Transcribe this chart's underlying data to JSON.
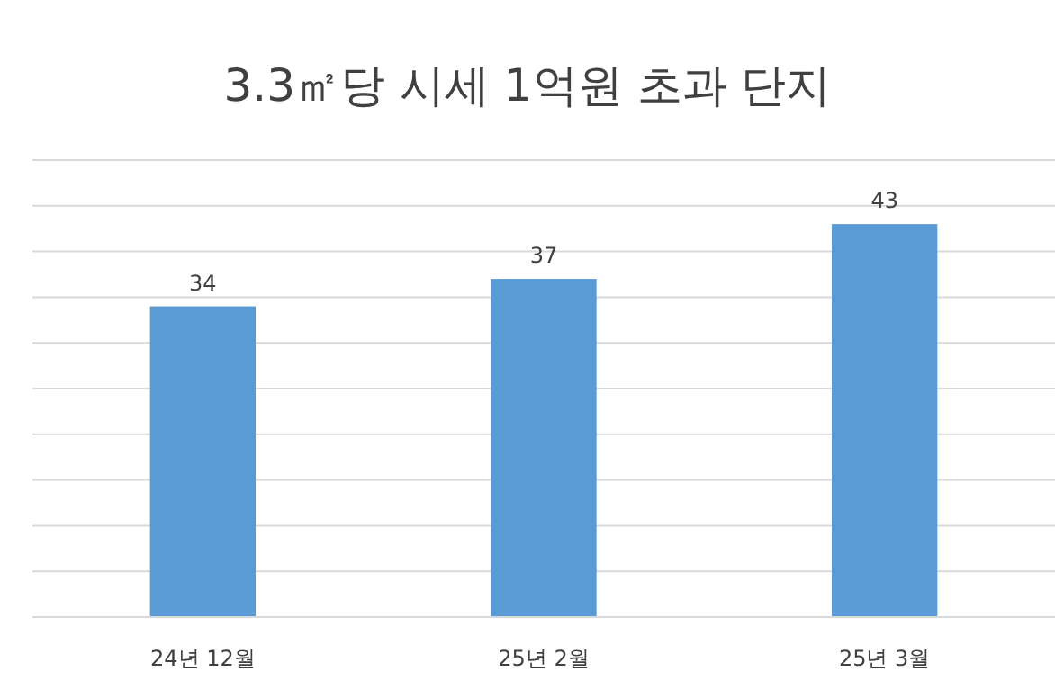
{
  "chart_data": {
    "type": "bar",
    "title": "3.3㎡당 시세 1억원 초과 단지",
    "categories": [
      "24년 12월",
      "25년 2월",
      "25년 3월"
    ],
    "values": [
      34,
      37,
      43
    ],
    "color": "#5b9bd5",
    "ylim": [
      0,
      50
    ],
    "yticks": [
      {
        "value": 0,
        "label": null
      },
      {
        "value": 5,
        "label": null
      },
      {
        "value": 10,
        "label": null
      },
      {
        "value": 15,
        "label": null
      },
      {
        "value": 20,
        "label": null
      },
      {
        "value": 25,
        "label": null
      },
      {
        "value": 30,
        "label": null
      },
      {
        "value": 35,
        "label": null
      },
      {
        "value": 40,
        "label": null
      },
      {
        "value": 45,
        "label": null
      },
      {
        "value": 50,
        "label": null
      }
    ],
    "tick_labels": "x",
    "grid": "y",
    "data_labels": true
  }
}
